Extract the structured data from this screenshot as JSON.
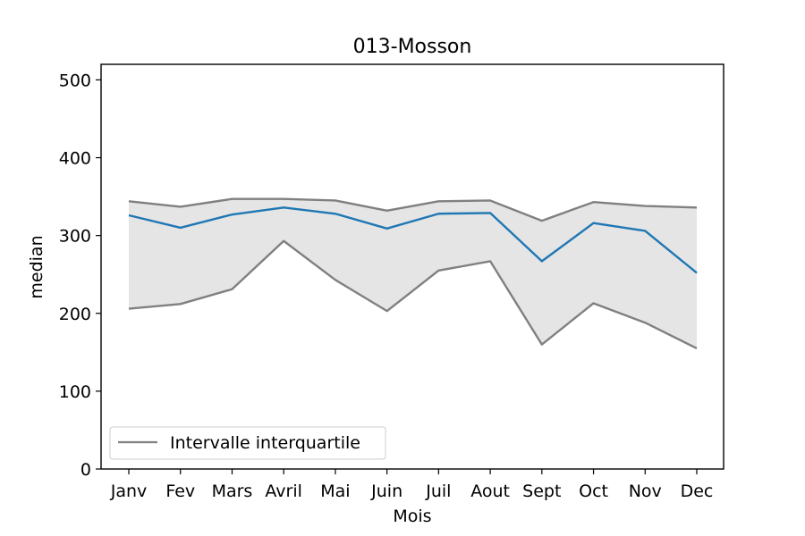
{
  "chart_data": {
    "type": "line",
    "title": "013-Mosson",
    "xlabel": "Mois",
    "ylabel": "median",
    "categories": [
      "Janv",
      "Fev",
      "Mars",
      "Avril",
      "Mai",
      "Juin",
      "Juil",
      "Aout",
      "Sept",
      "Oct",
      "Nov",
      "Dec"
    ],
    "ylim": [
      0,
      520
    ],
    "yticks": [
      0,
      100,
      200,
      300,
      400,
      500
    ],
    "grid": false,
    "legend_position": "lower-left",
    "legend_label": "Intervalle interquartile",
    "series": [
      {
        "role": "median",
        "color": "#1f77b4",
        "values": [
          326,
          310,
          327,
          336,
          328,
          309,
          328,
          329,
          267,
          316,
          306,
          252
        ]
      },
      {
        "role": "q3",
        "color": "#808080",
        "values": [
          344,
          337,
          347,
          347,
          345,
          332,
          344,
          345,
          319,
          343,
          338,
          336
        ]
      },
      {
        "role": "q1",
        "color": "#808080",
        "values": [
          206,
          212,
          231,
          293,
          243,
          203,
          255,
          267,
          160,
          213,
          188,
          155
        ]
      }
    ],
    "band_color": "#d3d3d3"
  }
}
